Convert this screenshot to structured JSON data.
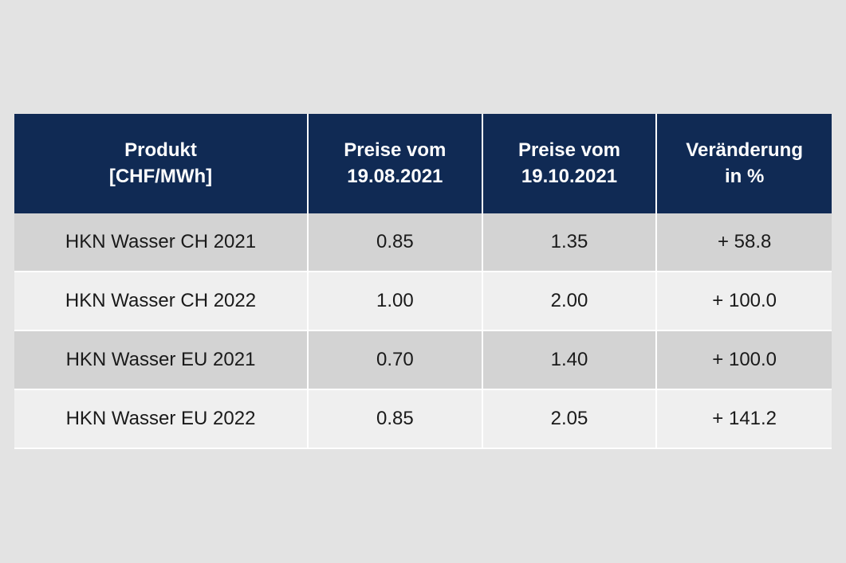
{
  "table": {
    "type": "table",
    "header_bg": "#102a54",
    "header_fg": "#ffffff",
    "row_odd_bg": "#d3d3d3",
    "row_even_bg": "#efefef",
    "border_color": "#ffffff",
    "page_bg": "#e3e3e3",
    "font_family": "Arial",
    "header_fontsize_pt": 18,
    "cell_fontsize_pt": 18,
    "header_fontweight": 700,
    "column_widths_pct": [
      36,
      21.333,
      21.333,
      21.333
    ],
    "columns": [
      {
        "line1": "Produkt",
        "line2": "[CHF/MWh]",
        "align": "center"
      },
      {
        "line1": "Preise vom",
        "line2": "19.08.2021",
        "align": "center"
      },
      {
        "line1": "Preise vom",
        "line2": "19.10.2021",
        "align": "center"
      },
      {
        "line1": "Veränderung",
        "line2": "in %",
        "align": "center"
      }
    ],
    "rows": [
      {
        "product": "HKN Wasser CH 2021",
        "price_a": "0.85",
        "price_b": "1.35",
        "change": "+ 58.8"
      },
      {
        "product": "HKN Wasser CH 2022",
        "price_a": "1.00",
        "price_b": "2.00",
        "change": "+ 100.0"
      },
      {
        "product": "HKN Wasser EU 2021",
        "price_a": "0.70",
        "price_b": "1.40",
        "change": "+ 100.0"
      },
      {
        "product": "HKN Wasser EU 2022",
        "price_a": "0.85",
        "price_b": "2.05",
        "change": "+ 141.2"
      }
    ]
  }
}
